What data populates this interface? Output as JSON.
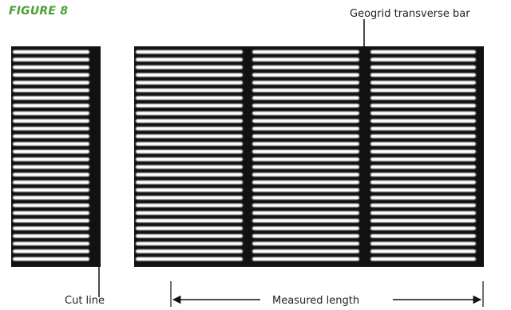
{
  "figure": {
    "title": "FIGURE 8",
    "accent_color": "#4aa031"
  },
  "diagram": {
    "labels": {
      "transverse_bar": "Geogrid transverse bar",
      "cut_line": "Cut line",
      "measured_length": "Measured length"
    },
    "colors": {
      "strand": "#111111",
      "background": "#ffffff",
      "label": "#222222"
    }
  }
}
